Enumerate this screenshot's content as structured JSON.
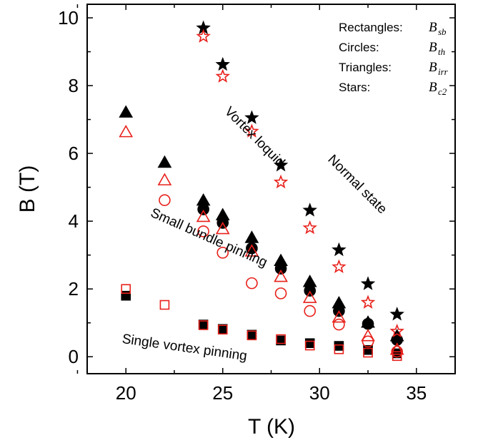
{
  "chart_data": {
    "type": "scatter",
    "xlabel": "T (K)",
    "ylabel": "B (T)",
    "xlim": [
      18,
      37
    ],
    "ylim": [
      -0.5,
      10.4
    ],
    "xticks": [
      20,
      25,
      30,
      35
    ],
    "yticks": [
      0,
      2,
      4,
      6,
      8,
      10
    ],
    "xtick_labels": [
      "20",
      "25",
      "30",
      "35"
    ],
    "ytick_labels": [
      "0",
      "2",
      "4",
      "6",
      "8",
      "10"
    ],
    "legend": {
      "placement": "top-right",
      "entries": [
        {
          "label": "Rectangles:",
          "symbol": "B",
          "sub": "sb"
        },
        {
          "label": "Circles:",
          "symbol": "B",
          "sub": "th"
        },
        {
          "label": "Triangles:",
          "symbol": "B",
          "sub": "irr"
        },
        {
          "label": "Stars:",
          "symbol": "B",
          "sub": "c2"
        }
      ]
    },
    "annotations": [
      {
        "text": "Vortex loquid",
        "x": 26.5,
        "y": 6.4,
        "rotate": 45
      },
      {
        "text": "Normal state",
        "x": 31.8,
        "y": 5.0,
        "rotate": 45
      },
      {
        "text": "Small bundle pinning",
        "x": 24.2,
        "y": 3.4,
        "rotate": 24
      },
      {
        "text": "Single vortex pinning",
        "x": 23.0,
        "y": 0.15,
        "rotate": 8
      }
    ],
    "series": [
      {
        "marker": "square",
        "filled": true,
        "color": "#000000",
        "x": [
          20,
          24,
          25,
          26.5,
          28,
          29.5,
          31,
          32.5,
          34
        ],
        "y": [
          1.8,
          0.95,
          0.82,
          0.65,
          0.48,
          0.4,
          0.32,
          0.2,
          0.1
        ]
      },
      {
        "marker": "square",
        "filled": false,
        "color": "#e8201a",
        "x": [
          20,
          22,
          24,
          25,
          26.5,
          28,
          29.5,
          31,
          32.5,
          34
        ],
        "y": [
          2.0,
          1.53,
          0.93,
          0.8,
          0.63,
          0.52,
          0.33,
          0.22,
          0.12,
          0.02
        ]
      },
      {
        "marker": "circle",
        "filled": true,
        "color": "#000000",
        "x": [
          24,
          25,
          26.5,
          28,
          29.5,
          31,
          32.5,
          34
        ],
        "y": [
          4.35,
          3.95,
          3.2,
          2.6,
          1.95,
          1.35,
          0.97,
          0.5
        ]
      },
      {
        "marker": "circle",
        "filled": false,
        "color": "#e8201a",
        "x": [
          22,
          24,
          25,
          26.5,
          28,
          29.5,
          31,
          32.5,
          34
        ],
        "y": [
          4.62,
          3.7,
          3.07,
          2.17,
          1.87,
          1.35,
          0.95,
          0.45,
          0.15
        ]
      },
      {
        "marker": "triangle",
        "filled": true,
        "color": "#000000",
        "x": [
          20,
          22,
          24,
          25,
          26.5,
          28,
          29.5,
          31,
          32.5,
          34
        ],
        "y": [
          7.2,
          5.72,
          4.6,
          4.17,
          3.5,
          2.82,
          2.2,
          1.57,
          1.0,
          0.6
        ]
      },
      {
        "marker": "triangle",
        "filled": false,
        "color": "#e8201a",
        "x": [
          20,
          22,
          24,
          25,
          26.5,
          28,
          29.5,
          31,
          32.5,
          34
        ],
        "y": [
          6.62,
          5.2,
          4.12,
          3.76,
          3.1,
          2.35,
          1.73,
          1.15,
          0.6,
          0.2
        ]
      },
      {
        "marker": "star",
        "filled": true,
        "color": "#000000",
        "x": [
          24,
          25,
          26.5,
          28,
          29.5,
          31,
          32.5,
          34
        ],
        "y": [
          9.7,
          8.62,
          7.05,
          5.65,
          4.32,
          3.15,
          2.15,
          1.25
        ]
      },
      {
        "marker": "star",
        "filled": false,
        "color": "#e8201a",
        "x": [
          24,
          25,
          26.5,
          28,
          29.5,
          31,
          32.5,
          34
        ],
        "y": [
          9.45,
          8.27,
          6.65,
          5.15,
          3.8,
          2.65,
          1.6,
          0.75
        ]
      }
    ]
  }
}
